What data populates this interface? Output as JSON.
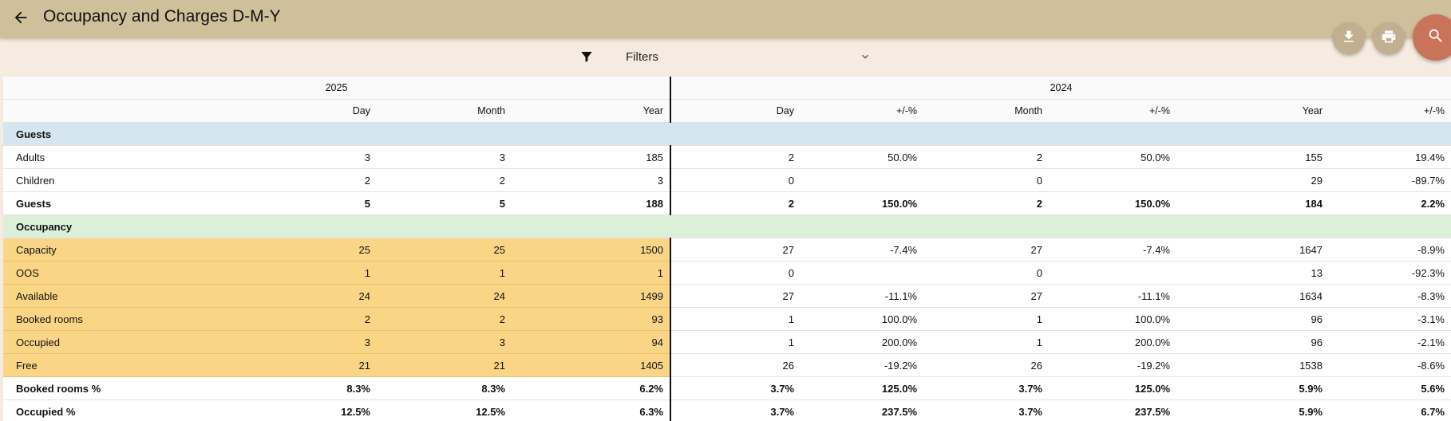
{
  "header": {
    "title": "Occupancy and Charges D-M-Y",
    "back_icon": "arrow-left-icon"
  },
  "actions": {
    "download_icon": "download-icon",
    "print_icon": "print-icon",
    "search_icon": "search-icon",
    "accent": "#c9735b"
  },
  "filters": {
    "label": "Filters"
  },
  "table": {
    "years": [
      "2025",
      "2024"
    ],
    "columns": [
      "Day",
      "Month",
      "Year",
      "Day",
      "+/-%",
      "Month",
      "+/-%",
      "Year",
      "+/-%"
    ],
    "rows": [
      {
        "type": "section",
        "label": "Guests"
      },
      {
        "type": "data",
        "label": "Adults",
        "values": [
          "3",
          "3",
          "185",
          "2",
          "50.0%",
          "2",
          "50.0%",
          "155",
          "19.4%"
        ]
      },
      {
        "type": "data",
        "label": "Children",
        "values": [
          "2",
          "2",
          "3",
          "0",
          "",
          "0",
          "",
          "29",
          "-89.7%"
        ]
      },
      {
        "type": "total",
        "label": "Guests",
        "values": [
          "5",
          "5",
          "188",
          "2",
          "150.0%",
          "2",
          "150.0%",
          "184",
          "2.2%"
        ]
      },
      {
        "type": "section",
        "label": "Occupancy"
      },
      {
        "type": "highlight",
        "label": "Capacity",
        "values": [
          "25",
          "25",
          "1500",
          "27",
          "-7.4%",
          "27",
          "-7.4%",
          "1647",
          "-8.9%"
        ]
      },
      {
        "type": "highlight",
        "label": "OOS",
        "values": [
          "1",
          "1",
          "1",
          "0",
          "",
          "0",
          "",
          "13",
          "-92.3%"
        ]
      },
      {
        "type": "highlight",
        "label": "Available",
        "values": [
          "24",
          "24",
          "1499",
          "27",
          "-11.1%",
          "27",
          "-11.1%",
          "1634",
          "-8.3%"
        ]
      },
      {
        "type": "highlight",
        "label": "Booked rooms",
        "values": [
          "2",
          "2",
          "93",
          "1",
          "100.0%",
          "1",
          "100.0%",
          "96",
          "-3.1%"
        ]
      },
      {
        "type": "highlight",
        "label": "Occupied",
        "values": [
          "3",
          "3",
          "94",
          "1",
          "200.0%",
          "1",
          "200.0%",
          "96",
          "-2.1%"
        ]
      },
      {
        "type": "highlight",
        "label": "Free",
        "values": [
          "21",
          "21",
          "1405",
          "26",
          "-19.2%",
          "26",
          "-19.2%",
          "1538",
          "-8.6%"
        ]
      },
      {
        "type": "total",
        "label": "Booked rooms %",
        "values": [
          "8.3%",
          "8.3%",
          "6.2%",
          "3.7%",
          "125.0%",
          "3.7%",
          "125.0%",
          "5.9%",
          "5.6%"
        ]
      },
      {
        "type": "total",
        "label": "Occupied %",
        "values": [
          "12.5%",
          "12.5%",
          "6.3%",
          "3.7%",
          "237.5%",
          "3.7%",
          "237.5%",
          "5.9%",
          "6.7%"
        ]
      }
    ]
  }
}
